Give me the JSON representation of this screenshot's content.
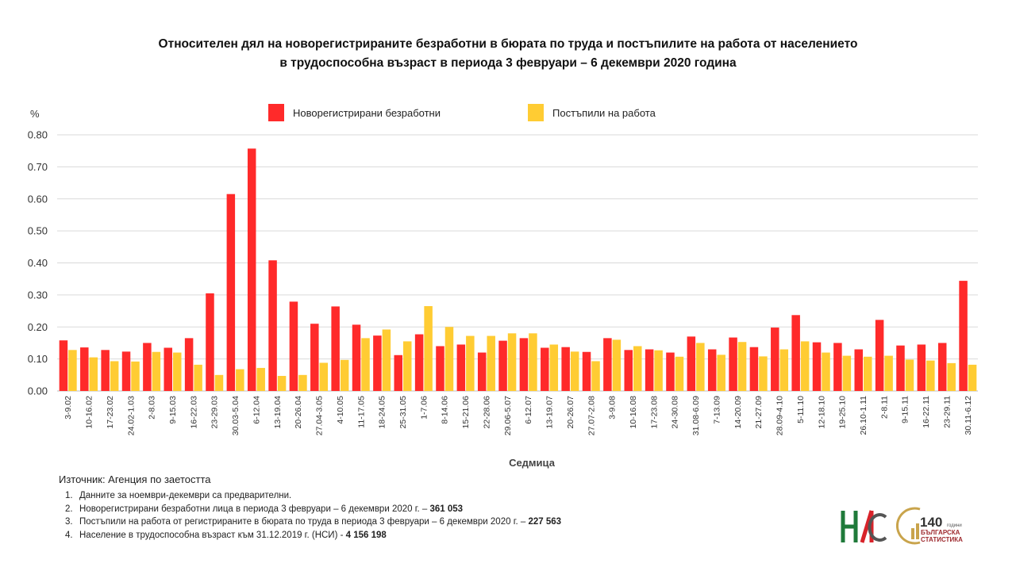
{
  "title_line1": "Относителен дял на новорегистрираните безработни в бюрата по труда и постъпилите на работа от населението",
  "title_line2": "в трудоспособна възраст в периода 3 февруари – 6 декември 2020 година",
  "colors": {
    "red": "#FF2A2A",
    "yellow": "#FFCC33",
    "grid": "#D9D9D9",
    "axis": "#BFBFBF"
  },
  "chart_data": {
    "type": "bar",
    "title": "Относителен дял на новорегистрираните безработни в бюрата по труда и постъпилите на работа от населението в трудоспособна възраст в периода 3 февруари – 6 декември 2020 година",
    "xlabel": "Седмица",
    "ylabel": "%",
    "ylim": [
      0,
      0.8
    ],
    "yticks": [
      "0.00",
      "0.10",
      "0.20",
      "0.30",
      "0.40",
      "0.50",
      "0.60",
      "0.70",
      "0.80"
    ],
    "grid": true,
    "legend": "top-center",
    "categories": [
      "3-9.02",
      "10-16.02",
      "17-23.02",
      "24.02-1.03",
      "2-8.03",
      "9-15.03",
      "16-22.03",
      "23-29.03",
      "30.03-5.04",
      "6-12.04",
      "13-19.04",
      "20-26.04",
      "27.04-3.05",
      "4-10.05",
      "11-17.05",
      "18-24.05",
      "25-31.05",
      "1-7.06",
      "8-14.06",
      "15-21.06",
      "22-28.06",
      "29.06-5.07",
      "6-12.07",
      "13-19.07",
      "20-26.07",
      "27.07-2.08",
      "3-9.08",
      "10-16.08",
      "17-23.08",
      "24-30.08",
      "31.08-6.09",
      "7-13.09",
      "14-20.09",
      "21-27.09",
      "28.09-4.10",
      "5-11.10",
      "12-18.10",
      "19-25.10",
      "26.10-1.11",
      "2-8.11",
      "9-15.11",
      "16-22.11",
      "23-29.11",
      "30.11-6.12"
    ],
    "series": [
      {
        "name": "Новорегистрирани безработни",
        "color": "#FF2A2A",
        "values": [
          0.158,
          0.136,
          0.128,
          0.123,
          0.15,
          0.135,
          0.165,
          0.305,
          0.615,
          0.757,
          0.408,
          0.279,
          0.21,
          0.264,
          0.207,
          0.173,
          0.112,
          0.177,
          0.14,
          0.145,
          0.12,
          0.157,
          0.165,
          0.135,
          0.137,
          0.122,
          0.165,
          0.128,
          0.13,
          0.12,
          0.17,
          0.13,
          0.167,
          0.137,
          0.198,
          0.237,
          0.152,
          0.15,
          0.13,
          0.222,
          0.142,
          0.145,
          0.15,
          0.344
        ]
      },
      {
        "name": "Постъпили на работа",
        "color": "#FFCC33",
        "values": [
          0.128,
          0.105,
          0.093,
          0.092,
          0.122,
          0.12,
          0.082,
          0.05,
          0.068,
          0.072,
          0.047,
          0.05,
          0.088,
          0.097,
          0.165,
          0.192,
          0.155,
          0.265,
          0.2,
          0.172,
          0.172,
          0.18,
          0.18,
          0.145,
          0.123,
          0.093,
          0.16,
          0.14,
          0.127,
          0.107,
          0.15,
          0.113,
          0.153,
          0.108,
          0.13,
          0.155,
          0.12,
          0.11,
          0.107,
          0.11,
          0.098,
          0.095,
          0.087,
          0.082
        ]
      }
    ]
  },
  "source": "Източник: Агенция по заетостта",
  "notes": [
    {
      "num": "1.",
      "text": "Данните за ноември-декември  са предварителни.",
      "bold": ""
    },
    {
      "num": "2.",
      "text": "Новорегистрирани безработни лица в периода 3 февруари – 6 декември  2020 г. – ",
      "bold": "361 053"
    },
    {
      "num": "3.",
      "text": "Постъпили на работа от регистрираните в бюрата по труда в периода 3 февруари – 6 декември  2020 г. – ",
      "bold": "227 563"
    },
    {
      "num": "4.",
      "text": "Население в трудоспособна възраст към 31.12.2019 г. (НСИ)  - ",
      "bold": "4 156 198"
    }
  ],
  "logos": {
    "nsi": "НСИ",
    "anniv_number": "140",
    "anniv_small": "години",
    "anniv_line1": "БЪЛГАРСКА",
    "anniv_line2": "СТАТИСТИКА"
  }
}
